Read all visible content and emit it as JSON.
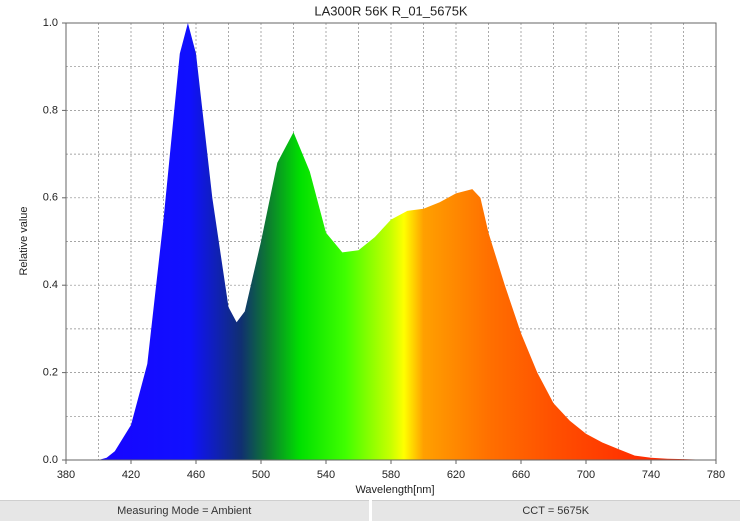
{
  "chart_data": {
    "type": "area",
    "title": "LA300R 56K R_01_5675K",
    "x_label": "Wavelength[nm]",
    "y_label": "Relative value",
    "x": [
      380,
      390,
      400,
      405,
      410,
      420,
      430,
      440,
      450,
      455,
      460,
      470,
      480,
      485,
      490,
      500,
      510,
      520,
      530,
      540,
      550,
      560,
      570,
      580,
      590,
      600,
      610,
      620,
      630,
      635,
      640,
      650,
      660,
      670,
      680,
      690,
      700,
      710,
      720,
      730,
      740,
      750,
      760,
      770,
      780
    ],
    "values": [
      0,
      0,
      0,
      0.005,
      0.02,
      0.08,
      0.22,
      0.55,
      0.93,
      1.0,
      0.93,
      0.6,
      0.35,
      0.315,
      0.34,
      0.5,
      0.68,
      0.75,
      0.66,
      0.52,
      0.475,
      0.48,
      0.51,
      0.55,
      0.57,
      0.575,
      0.59,
      0.61,
      0.62,
      0.6,
      0.52,
      0.4,
      0.29,
      0.2,
      0.13,
      0.09,
      0.06,
      0.04,
      0.025,
      0.01,
      0.005,
      0.003,
      0.002,
      0.001,
      0
    ],
    "xlim": [
      380,
      780
    ],
    "ylim": [
      0,
      1
    ],
    "xticks": [
      380,
      420,
      460,
      500,
      540,
      580,
      620,
      660,
      700,
      740,
      780
    ],
    "yticks": [
      {
        "value": 0,
        "label": "0.0"
      },
      {
        "value": 0.2,
        "label": "0.2"
      },
      {
        "value": 0.4,
        "label": "0.4"
      },
      {
        "value": 0.6,
        "label": "0.6"
      },
      {
        "value": 0.8,
        "label": "0.8"
      },
      {
        "value": 1,
        "label": "1.0"
      }
    ],
    "x_minor_grid": [
      400,
      440,
      480,
      520,
      560,
      600,
      640,
      680,
      720,
      760
    ],
    "y_minor_grid": [
      0.1,
      0.3,
      0.5,
      0.7,
      0.9
    ],
    "grid": true
  },
  "status_bar": [
    "Measuring Mode = Ambient",
    "CCT = 5675K"
  ]
}
